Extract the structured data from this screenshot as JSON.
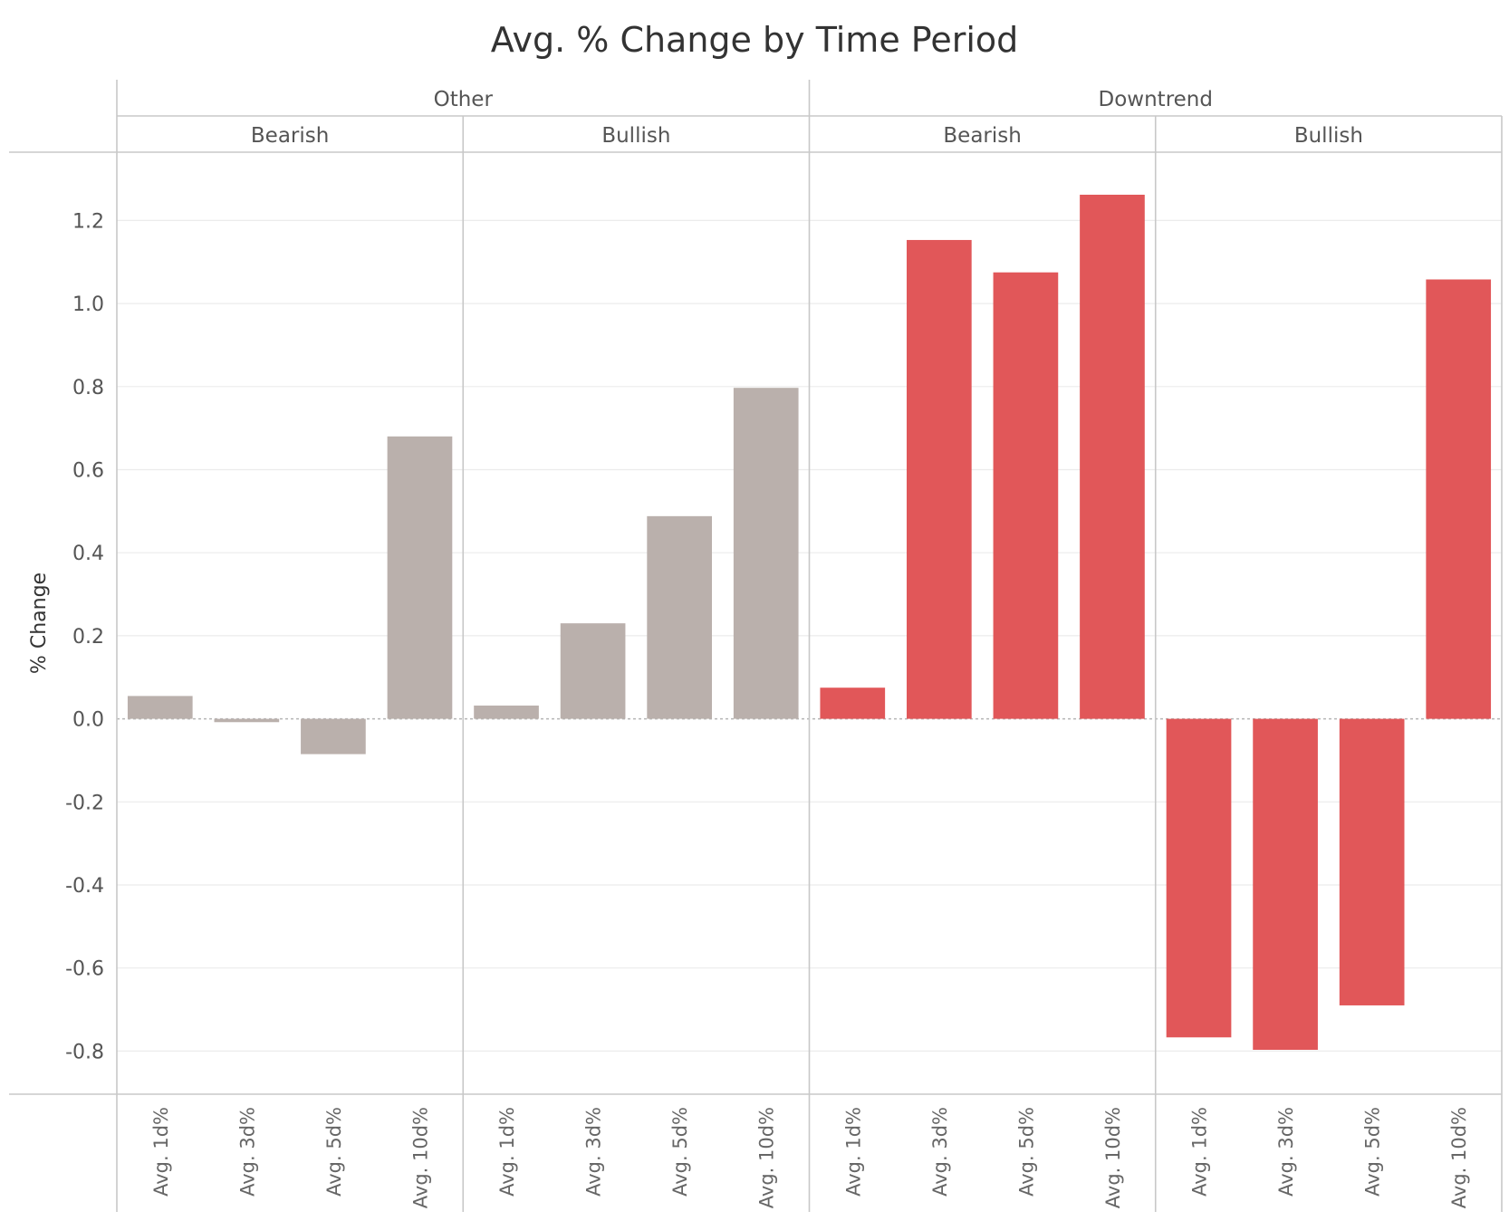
{
  "chart_data": {
    "type": "bar",
    "title": "Avg. % Change by Time Period",
    "ylabel": "% Change",
    "xlabel": "",
    "ylim": [
      -0.9,
      1.35
    ],
    "yticks": [
      1.2,
      1.0,
      0.8,
      0.6,
      0.4,
      0.2,
      0.0,
      -0.2,
      -0.4,
      -0.6,
      -0.8
    ],
    "ytick_labels": [
      "1.2",
      "1.0",
      "0.8",
      "0.6",
      "0.4",
      "0.2",
      "0.0",
      "-0.2",
      "-0.4",
      "-0.6",
      "-0.8"
    ],
    "grid": true,
    "categories": [
      "Avg. 1d%",
      "Avg. 3d%",
      "Avg. 5d%",
      "Avg. 10d%"
    ],
    "groups": [
      {
        "label": "Other",
        "color": "#bab0ac",
        "panels": [
          {
            "label": "Bearish",
            "values": [
              0.055,
              -0.008,
              -0.085,
              0.68
            ]
          },
          {
            "label": "Bullish",
            "values": [
              0.032,
              0.23,
              0.488,
              0.797
            ]
          }
        ]
      },
      {
        "label": "Downtrend",
        "color": "#e15759",
        "panels": [
          {
            "label": "Bearish",
            "values": [
              0.075,
              1.153,
              1.075,
              1.262
            ]
          },
          {
            "label": "Bullish",
            "values": [
              -0.767,
              -0.797,
              -0.69,
              1.058
            ]
          }
        ]
      }
    ]
  }
}
